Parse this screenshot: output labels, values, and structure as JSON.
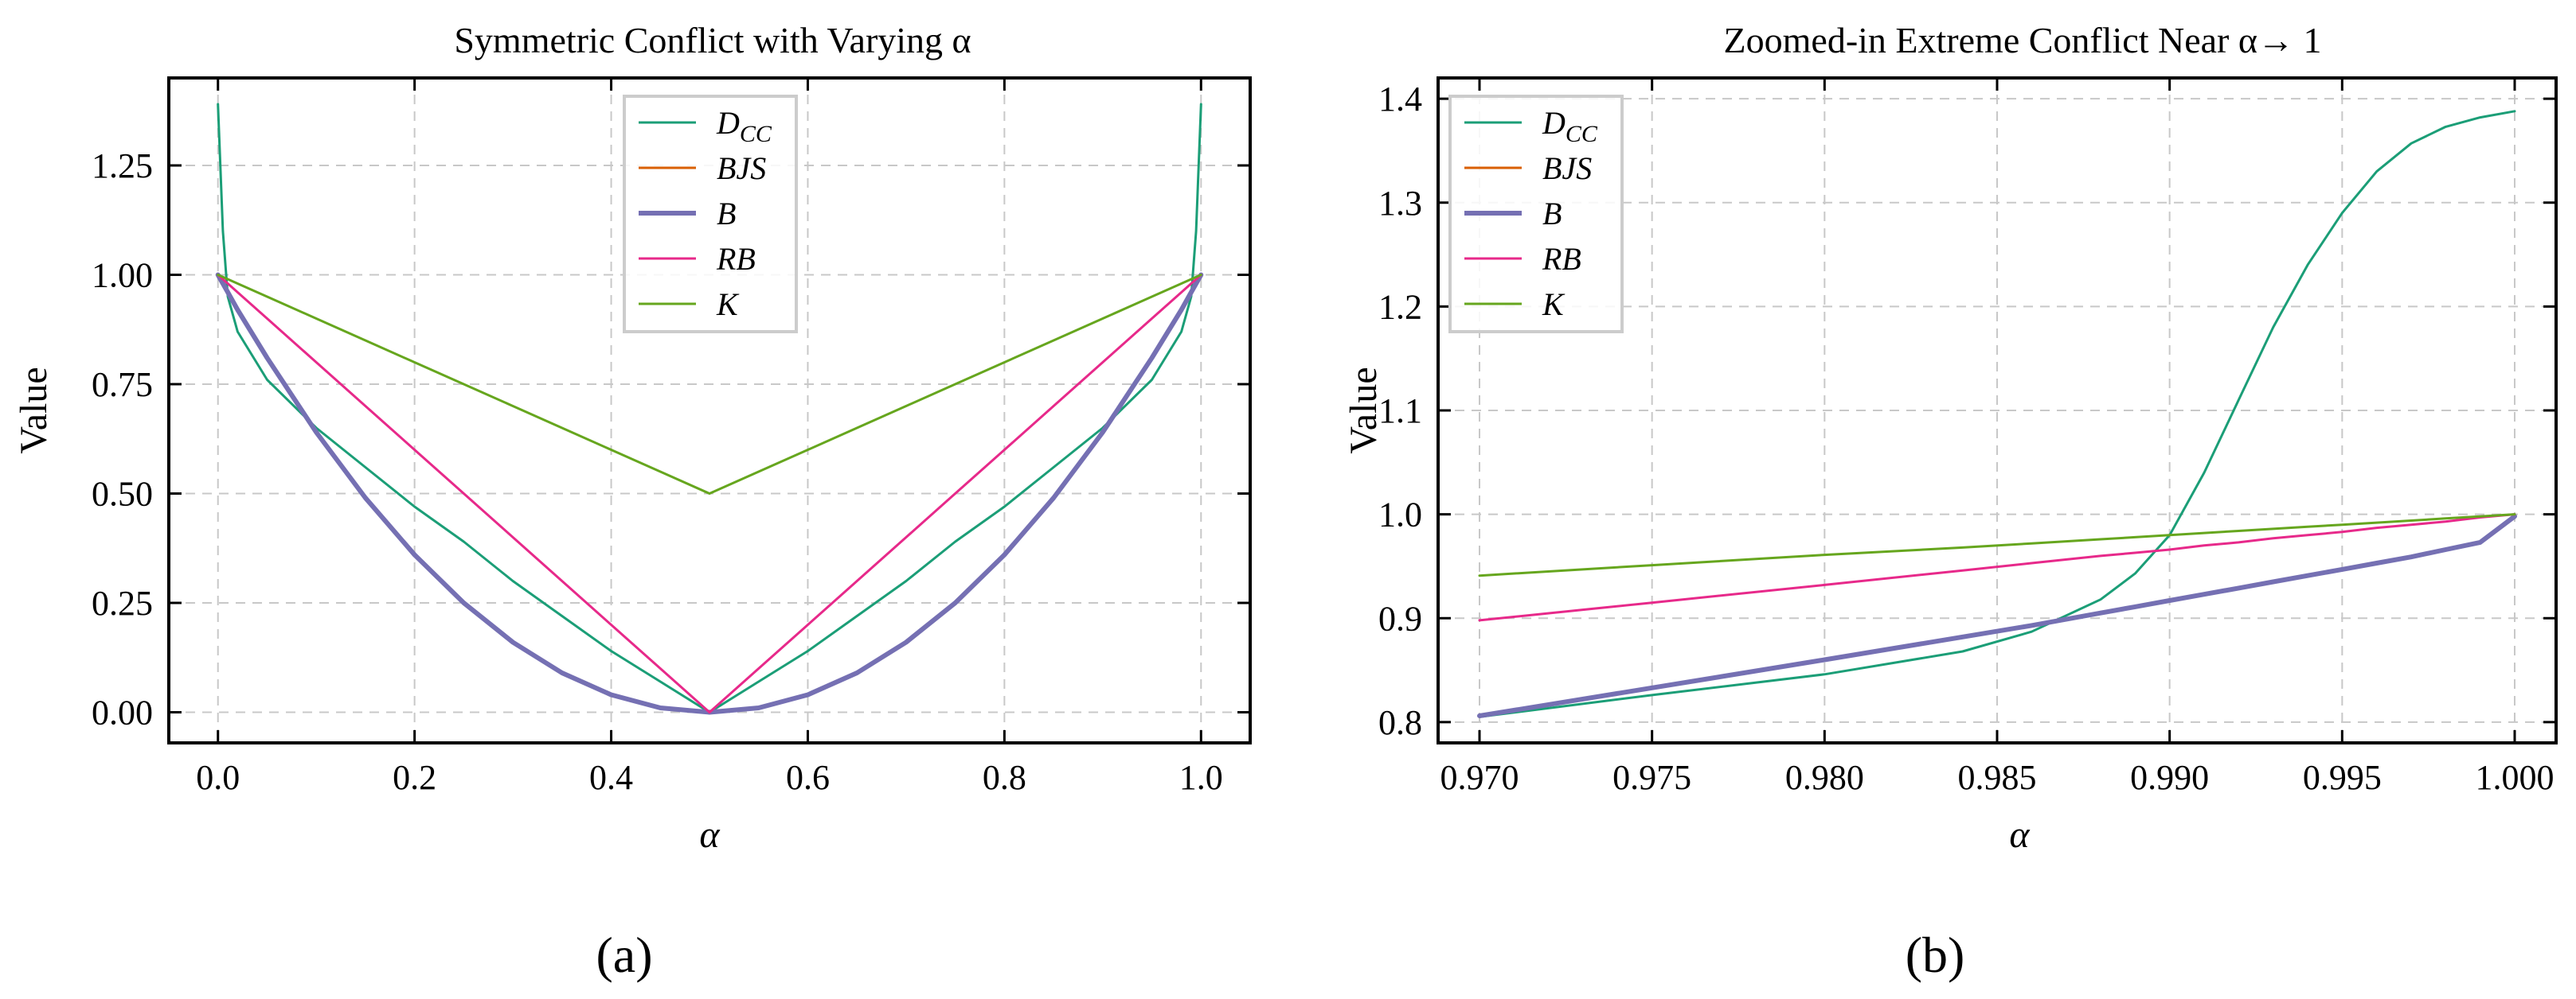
{
  "chart_data": [
    {
      "type": "line",
      "title": "Symmetric Conflict with Varying α",
      "xlabel": "α",
      "ylabel": "Value",
      "panel_label": "(a)",
      "xlim": [
        -0.05,
        1.05
      ],
      "ylim": [
        -0.07,
        1.45
      ],
      "xticks": [
        "0.0",
        "0.2",
        "0.4",
        "0.6",
        "0.8",
        "1.0"
      ],
      "xtick_values": [
        0.0,
        0.2,
        0.4,
        0.6,
        0.8,
        1.0
      ],
      "yticks": [
        "0.00",
        "0.25",
        "0.50",
        "0.75",
        "1.00",
        "1.25"
      ],
      "ytick_values": [
        0.0,
        0.25,
        0.5,
        0.75,
        1.0,
        1.25
      ],
      "grid": true,
      "legend": "upper-center",
      "x": [
        0.0,
        0.005,
        0.01,
        0.02,
        0.05,
        0.1,
        0.15,
        0.2,
        0.25,
        0.3,
        0.35,
        0.4,
        0.45,
        0.5,
        0.55,
        0.6,
        0.65,
        0.7,
        0.75,
        0.8,
        0.85,
        0.9,
        0.95,
        0.98,
        0.99,
        0.995,
        1.0
      ],
      "series": [
        {
          "name": "D",
          "sub": "CC",
          "color": "#1b9e77",
          "width": 3,
          "values": [
            1.39,
            1.1,
            0.95,
            0.87,
            0.76,
            0.65,
            0.56,
            0.47,
            0.39,
            0.3,
            0.22,
            0.14,
            0.07,
            0.0,
            0.07,
            0.14,
            0.22,
            0.3,
            0.39,
            0.47,
            0.56,
            0.65,
            0.76,
            0.87,
            0.95,
            1.1,
            1.39
          ]
        },
        {
          "name": "BJS",
          "sub": "",
          "color": "#d95f02",
          "width": 3,
          "values": [
            1.0,
            0.98,
            0.96,
            0.92,
            0.81,
            0.64,
            0.49,
            0.36,
            0.25,
            0.16,
            0.09,
            0.04,
            0.01,
            0.0,
            0.01,
            0.04,
            0.09,
            0.16,
            0.25,
            0.36,
            0.49,
            0.64,
            0.81,
            0.92,
            0.96,
            0.98,
            1.0
          ]
        },
        {
          "name": "B",
          "sub": "",
          "color": "#7570b3",
          "width": 6,
          "values": [
            1.0,
            0.98,
            0.96,
            0.92,
            0.81,
            0.64,
            0.49,
            0.36,
            0.25,
            0.16,
            0.09,
            0.04,
            0.01,
            0.0,
            0.01,
            0.04,
            0.09,
            0.16,
            0.25,
            0.36,
            0.49,
            0.64,
            0.81,
            0.92,
            0.96,
            0.98,
            1.0
          ]
        },
        {
          "name": "RB",
          "sub": "",
          "color": "#e7298a",
          "width": 3,
          "values": [
            1.0,
            0.99,
            0.98,
            0.96,
            0.9,
            0.8,
            0.7,
            0.6,
            0.5,
            0.4,
            0.3,
            0.2,
            0.1,
            0.0,
            0.1,
            0.2,
            0.3,
            0.4,
            0.5,
            0.6,
            0.7,
            0.8,
            0.9,
            0.96,
            0.98,
            0.99,
            1.0
          ]
        },
        {
          "name": "K",
          "sub": "",
          "color": "#66a61e",
          "width": 3,
          "values": [
            1.0,
            0.995,
            0.99,
            0.98,
            0.95,
            0.9,
            0.85,
            0.8,
            0.75,
            0.7,
            0.65,
            0.6,
            0.55,
            0.5,
            0.55,
            0.6,
            0.65,
            0.7,
            0.75,
            0.8,
            0.85,
            0.9,
            0.95,
            0.98,
            0.99,
            0.995,
            1.0
          ]
        }
      ]
    },
    {
      "type": "line",
      "title": "Zoomed-in Extreme Conflict Near α→ 1",
      "xlabel": "α",
      "ylabel": "Value",
      "panel_label": "(b)",
      "xlim": [
        0.9688,
        1.0012
      ],
      "ylim": [
        0.78,
        1.42
      ],
      "xticks": [
        "0.970",
        "0.975",
        "0.980",
        "0.985",
        "0.990",
        "0.995",
        "1.000"
      ],
      "xtick_values": [
        0.97,
        0.975,
        0.98,
        0.985,
        0.99,
        0.995,
        1.0
      ],
      "yticks": [
        "0.8",
        "0.9",
        "1.0",
        "1.1",
        "1.2",
        "1.3",
        "1.4"
      ],
      "ytick_values": [
        0.8,
        0.9,
        1.0,
        1.1,
        1.2,
        1.3,
        1.4
      ],
      "grid": true,
      "legend": "upper-left",
      "x": [
        0.97,
        0.975,
        0.98,
        0.984,
        0.986,
        0.988,
        0.989,
        0.99,
        0.991,
        0.992,
        0.993,
        0.994,
        0.995,
        0.996,
        0.997,
        0.998,
        0.999,
        1.0
      ],
      "series": [
        {
          "name": "D",
          "sub": "CC",
          "color": "#1b9e77",
          "width": 3,
          "values": [
            0.805,
            0.826,
            0.846,
            0.868,
            0.887,
            0.918,
            0.943,
            0.98,
            1.04,
            1.11,
            1.18,
            1.24,
            1.29,
            1.33,
            1.357,
            1.373,
            1.382,
            1.388
          ]
        },
        {
          "name": "BJS",
          "sub": "",
          "color": "#d95f02",
          "width": 3,
          "values": [
            0.806,
            0.833,
            0.86,
            0.882,
            0.893,
            0.905,
            0.911,
            0.917,
            0.923,
            0.929,
            0.935,
            0.941,
            0.947,
            0.953,
            0.959,
            0.966,
            0.973,
            0.998
          ]
        },
        {
          "name": "B",
          "sub": "",
          "color": "#7570b3",
          "width": 6,
          "values": [
            0.806,
            0.833,
            0.86,
            0.882,
            0.893,
            0.905,
            0.911,
            0.917,
            0.923,
            0.929,
            0.935,
            0.941,
            0.947,
            0.953,
            0.959,
            0.966,
            0.973,
            0.998
          ]
        },
        {
          "name": "RB",
          "sub": "",
          "color": "#e7298a",
          "width": 3,
          "values": [
            0.898,
            0.915,
            0.932,
            0.946,
            0.953,
            0.96,
            0.963,
            0.966,
            0.97,
            0.973,
            0.977,
            0.98,
            0.983,
            0.987,
            0.99,
            0.993,
            0.997,
            1.0
          ]
        },
        {
          "name": "K",
          "sub": "",
          "color": "#66a61e",
          "width": 3,
          "values": [
            0.941,
            0.951,
            0.961,
            0.968,
            0.972,
            0.976,
            0.978,
            0.98,
            0.982,
            0.984,
            0.986,
            0.988,
            0.99,
            0.992,
            0.994,
            0.996,
            0.998,
            1.0
          ]
        }
      ]
    }
  ]
}
